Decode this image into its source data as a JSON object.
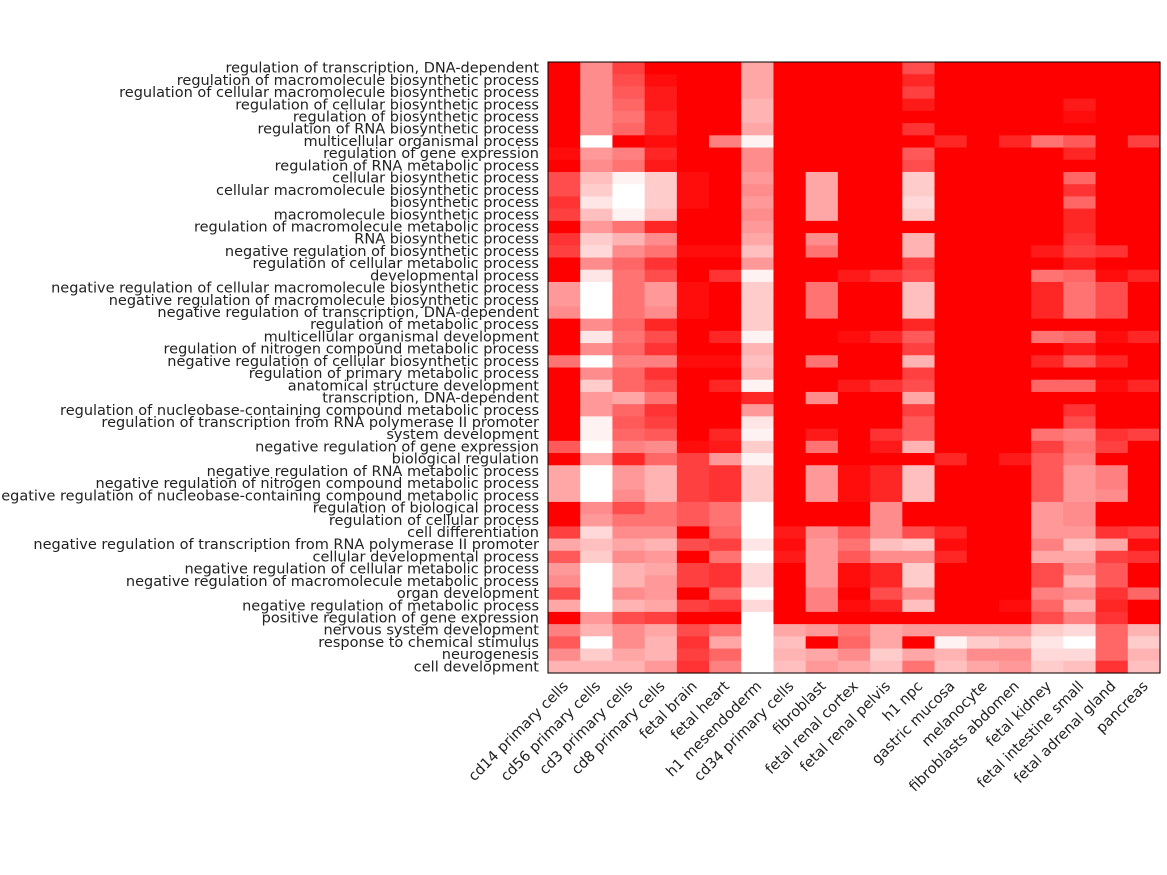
{
  "chart_data": {
    "type": "heatmap",
    "title": "",
    "xlabel": "",
    "ylabel": "",
    "color_scale": {
      "low": "#ffffff",
      "high": "#ff0000",
      "range": [
        0,
        1
      ]
    },
    "columns": [
      "cd14 primary cells",
      "cd56 primary cells",
      "cd3 primary cells",
      "cd8 primary cells",
      "fetal brain",
      "fetal heart",
      "h1 mesendoderm",
      "cd34 primary cells",
      "fibroblast",
      "fetal renal cortex",
      "fetal renal pelvis",
      "h1 npc",
      "gastric mucosa",
      "melanocyte",
      "fibroblasts abdomen",
      "fetal kidney",
      "fetal intestine small",
      "fetal adrenal gland",
      "pancreas"
    ],
    "rows": [
      "regulation of transcription, DNA-dependent",
      "regulation of macromolecule biosynthetic process",
      "regulation of cellular macromolecule biosynthetic process",
      "regulation of cellular biosynthetic process",
      "regulation of biosynthetic process",
      "regulation of RNA biosynthetic process",
      "multicellular organismal process",
      "regulation of gene expression",
      "regulation of RNA metabolic process",
      "cellular biosynthetic process",
      "cellular macromolecule biosynthetic process",
      "biosynthetic process",
      "macromolecule biosynthetic process",
      "regulation of macromolecule metabolic process",
      "RNA biosynthetic process",
      "negative regulation of biosynthetic process",
      "regulation of cellular metabolic process",
      "developmental process",
      "negative regulation of cellular macromolecule biosynthetic process",
      "negative regulation of macromolecule biosynthetic process",
      "negative regulation of transcription, DNA-dependent",
      "regulation of metabolic process",
      "multicellular organismal development",
      "regulation of nitrogen compound metabolic process",
      "negative regulation of cellular biosynthetic process",
      "regulation of primary metabolic process",
      "anatomical structure development",
      "transcription, DNA-dependent",
      "regulation of nucleobase-containing compound metabolic process",
      "regulation of transcription from RNA polymerase II promoter",
      "system development",
      "negative regulation of gene expression",
      "biological regulation",
      "negative regulation of RNA metabolic process",
      "negative regulation of nitrogen compound metabolic process",
      "negative regulation of nucleobase-containing compound metabolic process",
      "regulation of biological process",
      "regulation of cellular process",
      "cell differentiation",
      "negative regulation of transcription from RNA polymerase II promoter",
      "cellular developmental process",
      "negative regulation of cellular metabolic process",
      "negative regulation of macromolecule metabolic process",
      "organ development",
      "negative regulation of metabolic process",
      "positive regulation of gene expression",
      "nervous system development",
      "response to chemical stimulus",
      "neurogenesis",
      "cell development"
    ],
    "values": [
      [
        1.0,
        0.45,
        0.75,
        1.0,
        1.0,
        1.0,
        0.35,
        1.0,
        1.0,
        1.0,
        1.0,
        0.7,
        1.0,
        1.0,
        1.0,
        1.0,
        1.0,
        1.0,
        1.0
      ],
      [
        1.0,
        0.45,
        0.7,
        0.95,
        1.0,
        1.0,
        0.35,
        1.0,
        1.0,
        1.0,
        1.0,
        0.85,
        1.0,
        1.0,
        1.0,
        1.0,
        1.0,
        1.0,
        1.0
      ],
      [
        1.0,
        0.45,
        0.65,
        0.9,
        1.0,
        1.0,
        0.35,
        1.0,
        1.0,
        1.0,
        1.0,
        0.75,
        1.0,
        1.0,
        1.0,
        1.0,
        1.0,
        1.0,
        1.0
      ],
      [
        1.0,
        0.45,
        0.6,
        0.9,
        1.0,
        1.0,
        0.3,
        1.0,
        1.0,
        1.0,
        1.0,
        0.9,
        1.0,
        1.0,
        1.0,
        1.0,
        0.9,
        1.0,
        1.0
      ],
      [
        1.0,
        0.45,
        0.55,
        0.85,
        1.0,
        1.0,
        0.3,
        1.0,
        1.0,
        1.0,
        1.0,
        1.0,
        1.0,
        1.0,
        1.0,
        1.0,
        0.95,
        1.0,
        1.0
      ],
      [
        1.0,
        0.45,
        0.6,
        0.85,
        1.0,
        1.0,
        0.35,
        1.0,
        1.0,
        1.0,
        1.0,
        0.8,
        1.0,
        1.0,
        1.0,
        1.0,
        1.0,
        1.0,
        1.0
      ],
      [
        1.0,
        0.0,
        1.0,
        0.95,
        1.0,
        0.5,
        0.05,
        1.0,
        1.0,
        1.0,
        1.0,
        1.0,
        0.85,
        1.0,
        0.85,
        0.55,
        0.65,
        1.0,
        0.75
      ],
      [
        0.95,
        0.4,
        0.5,
        0.85,
        1.0,
        1.0,
        0.45,
        1.0,
        1.0,
        1.0,
        1.0,
        0.65,
        1.0,
        1.0,
        1.0,
        1.0,
        0.85,
        1.0,
        1.0
      ],
      [
        1.0,
        0.45,
        0.55,
        0.9,
        1.0,
        1.0,
        0.45,
        1.0,
        1.0,
        1.0,
        1.0,
        0.7,
        1.0,
        1.0,
        1.0,
        1.0,
        1.0,
        1.0,
        1.0
      ],
      [
        0.7,
        0.25,
        0.05,
        0.2,
        0.95,
        1.0,
        0.4,
        1.0,
        0.35,
        1.0,
        1.0,
        0.2,
        1.0,
        1.0,
        1.0,
        1.0,
        0.6,
        1.0,
        1.0
      ],
      [
        0.7,
        0.2,
        0.0,
        0.2,
        0.95,
        1.0,
        0.45,
        1.0,
        0.35,
        1.0,
        1.0,
        0.2,
        1.0,
        1.0,
        1.0,
        1.0,
        0.8,
        1.0,
        1.0
      ],
      [
        0.8,
        0.1,
        0.0,
        0.2,
        0.95,
        1.0,
        0.4,
        1.0,
        0.35,
        1.0,
        1.0,
        0.15,
        1.0,
        1.0,
        1.0,
        1.0,
        0.6,
        1.0,
        1.0
      ],
      [
        0.75,
        0.25,
        0.05,
        0.25,
        1.0,
        1.0,
        0.45,
        1.0,
        0.35,
        1.0,
        1.0,
        0.2,
        1.0,
        1.0,
        1.0,
        1.0,
        0.85,
        1.0,
        1.0
      ],
      [
        1.0,
        0.4,
        0.55,
        0.85,
        1.0,
        1.0,
        0.4,
        1.0,
        1.0,
        1.0,
        1.0,
        1.0,
        1.0,
        1.0,
        1.0,
        1.0,
        0.85,
        1.0,
        1.0
      ],
      [
        0.8,
        0.2,
        0.3,
        0.45,
        1.0,
        1.0,
        0.35,
        1.0,
        0.45,
        1.0,
        1.0,
        0.3,
        1.0,
        1.0,
        1.0,
        1.0,
        0.8,
        1.0,
        1.0
      ],
      [
        0.75,
        0.15,
        0.45,
        0.55,
        0.95,
        0.95,
        0.25,
        1.0,
        0.55,
        1.0,
        1.0,
        0.3,
        1.0,
        1.0,
        1.0,
        0.9,
        0.75,
        0.8,
        1.0
      ],
      [
        1.0,
        0.45,
        0.6,
        0.8,
        1.0,
        1.0,
        0.4,
        1.0,
        1.0,
        1.0,
        1.0,
        0.75,
        1.0,
        1.0,
        1.0,
        1.0,
        0.9,
        1.0,
        1.0
      ],
      [
        1.0,
        0.1,
        0.55,
        0.7,
        1.0,
        0.8,
        0.05,
        1.0,
        1.0,
        0.9,
        0.8,
        0.7,
        1.0,
        1.0,
        1.0,
        0.55,
        0.6,
        0.95,
        0.85
      ],
      [
        0.4,
        0.0,
        0.55,
        0.4,
        0.95,
        1.0,
        0.2,
        1.0,
        0.55,
        1.0,
        1.0,
        0.25,
        1.0,
        1.0,
        1.0,
        0.85,
        0.55,
        0.7,
        1.0
      ],
      [
        0.4,
        0.0,
        0.55,
        0.4,
        0.95,
        1.0,
        0.2,
        1.0,
        0.55,
        1.0,
        1.0,
        0.25,
        1.0,
        1.0,
        1.0,
        0.85,
        0.55,
        0.7,
        1.0
      ],
      [
        0.45,
        0.0,
        0.55,
        0.45,
        0.95,
        1.0,
        0.2,
        1.0,
        0.55,
        1.0,
        1.0,
        0.25,
        1.0,
        1.0,
        1.0,
        0.85,
        0.55,
        0.7,
        1.0
      ],
      [
        1.0,
        0.45,
        0.6,
        0.85,
        1.0,
        1.0,
        0.2,
        1.0,
        1.0,
        1.0,
        1.0,
        0.85,
        1.0,
        1.0,
        1.0,
        1.0,
        1.0,
        1.0,
        1.0
      ],
      [
        1.0,
        0.1,
        0.55,
        0.7,
        1.0,
        0.85,
        0.05,
        1.0,
        1.0,
        0.95,
        0.85,
        0.65,
        1.0,
        1.0,
        1.0,
        0.55,
        0.6,
        0.95,
        0.85
      ],
      [
        1.0,
        0.45,
        0.6,
        0.8,
        1.0,
        1.0,
        0.3,
        1.0,
        1.0,
        1.0,
        1.0,
        0.75,
        1.0,
        1.0,
        1.0,
        1.0,
        0.9,
        1.0,
        1.0
      ],
      [
        0.55,
        0.0,
        0.5,
        0.5,
        0.95,
        0.95,
        0.25,
        1.0,
        0.55,
        1.0,
        1.0,
        0.3,
        1.0,
        1.0,
        1.0,
        0.85,
        0.65,
        0.85,
        1.0
      ],
      [
        1.0,
        0.45,
        0.6,
        0.8,
        1.0,
        1.0,
        0.3,
        1.0,
        1.0,
        1.0,
        1.0,
        0.75,
        1.0,
        1.0,
        1.0,
        1.0,
        1.0,
        1.0,
        1.0
      ],
      [
        1.0,
        0.2,
        0.6,
        0.7,
        1.0,
        0.85,
        0.05,
        1.0,
        1.0,
        0.9,
        0.8,
        0.7,
        1.0,
        1.0,
        1.0,
        0.6,
        0.6,
        0.95,
        0.85
      ],
      [
        1.0,
        0.4,
        0.35,
        0.55,
        1.0,
        1.0,
        0.85,
        1.0,
        0.45,
        1.0,
        1.0,
        0.35,
        1.0,
        1.0,
        1.0,
        1.0,
        1.0,
        1.0,
        1.0
      ],
      [
        1.0,
        0.4,
        0.6,
        0.8,
        1.0,
        1.0,
        0.4,
        1.0,
        1.0,
        1.0,
        1.0,
        0.75,
        1.0,
        1.0,
        1.0,
        1.0,
        0.8,
        1.0,
        1.0
      ],
      [
        1.0,
        0.05,
        0.65,
        0.75,
        1.0,
        1.0,
        0.1,
        1.0,
        1.0,
        1.0,
        1.0,
        0.65,
        1.0,
        1.0,
        1.0,
        1.0,
        0.7,
        1.0,
        1.0
      ],
      [
        1.0,
        0.05,
        0.6,
        0.65,
        1.0,
        0.85,
        0.05,
        1.0,
        0.9,
        1.0,
        0.8,
        0.65,
        1.0,
        1.0,
        1.0,
        0.55,
        0.5,
        0.8,
        0.75
      ],
      [
        0.65,
        0.0,
        0.5,
        0.45,
        0.95,
        0.9,
        0.2,
        1.0,
        0.55,
        1.0,
        0.9,
        0.3,
        1.0,
        1.0,
        1.0,
        0.75,
        0.55,
        0.75,
        1.0
      ],
      [
        1.0,
        0.35,
        0.85,
        0.6,
        0.75,
        0.4,
        0.05,
        1.0,
        1.0,
        1.0,
        1.0,
        1.0,
        0.85,
        1.0,
        0.9,
        0.65,
        0.5,
        1.0,
        1.0
      ],
      [
        0.35,
        0.0,
        0.4,
        0.3,
        0.75,
        0.8,
        0.2,
        1.0,
        0.4,
        0.95,
        0.85,
        0.25,
        1.0,
        1.0,
        1.0,
        0.65,
        0.4,
        0.5,
        1.0
      ],
      [
        0.35,
        0.0,
        0.4,
        0.3,
        0.75,
        0.8,
        0.2,
        1.0,
        0.4,
        0.95,
        0.85,
        0.25,
        1.0,
        1.0,
        1.0,
        0.65,
        0.4,
        0.5,
        1.0
      ],
      [
        0.35,
        0.0,
        0.45,
        0.3,
        0.75,
        0.8,
        0.2,
        1.0,
        0.4,
        0.95,
        0.85,
        0.25,
        1.0,
        1.0,
        1.0,
        0.65,
        0.4,
        0.45,
        1.0
      ],
      [
        1.0,
        0.45,
        0.7,
        0.55,
        0.65,
        0.55,
        0.0,
        1.0,
        1.0,
        1.0,
        0.45,
        1.0,
        1.0,
        1.0,
        1.0,
        0.4,
        0.45,
        1.0,
        1.0
      ],
      [
        1.0,
        0.4,
        0.55,
        0.55,
        0.65,
        0.55,
        0.0,
        1.0,
        1.0,
        1.0,
        0.45,
        1.0,
        1.0,
        1.0,
        1.0,
        0.4,
        0.45,
        1.0,
        1.0
      ],
      [
        0.75,
        0.15,
        0.45,
        0.45,
        1.0,
        0.6,
        0.0,
        0.9,
        0.45,
        0.65,
        0.45,
        0.7,
        0.85,
        1.0,
        1.0,
        0.4,
        0.4,
        0.8,
        0.75
      ],
      [
        0.35,
        0.25,
        0.35,
        0.3,
        0.7,
        0.75,
        0.1,
        0.95,
        0.4,
        0.55,
        0.25,
        0.2,
        0.95,
        1.0,
        1.0,
        0.5,
        0.25,
        0.35,
        0.95
      ],
      [
        0.65,
        0.2,
        0.45,
        0.4,
        1.0,
        0.55,
        0.0,
        0.9,
        0.4,
        0.65,
        0.45,
        0.45,
        0.85,
        1.0,
        1.0,
        0.35,
        0.35,
        0.75,
        0.8
      ],
      [
        0.4,
        0.0,
        0.3,
        0.35,
        0.75,
        0.8,
        0.15,
        1.0,
        0.4,
        0.95,
        0.85,
        0.2,
        1.0,
        1.0,
        1.0,
        0.7,
        0.45,
        0.65,
        1.0
      ],
      [
        0.45,
        0.0,
        0.3,
        0.4,
        0.75,
        0.8,
        0.15,
        1.0,
        0.4,
        0.95,
        0.85,
        0.2,
        1.0,
        1.0,
        1.0,
        0.7,
        0.3,
        0.65,
        1.0
      ],
      [
        0.7,
        0.0,
        0.45,
        0.4,
        1.0,
        0.6,
        0.0,
        1.0,
        0.5,
        1.0,
        0.7,
        0.45,
        1.0,
        1.0,
        1.0,
        0.5,
        0.45,
        0.8,
        0.6
      ],
      [
        0.35,
        0.0,
        0.3,
        0.35,
        0.75,
        0.8,
        0.15,
        1.0,
        0.5,
        0.95,
        0.85,
        0.25,
        1.0,
        1.0,
        0.95,
        0.6,
        0.3,
        0.85,
        1.0
      ],
      [
        1.0,
        0.4,
        0.7,
        0.75,
        1.0,
        1.0,
        0.0,
        1.0,
        1.0,
        1.0,
        1.0,
        1.0,
        1.0,
        1.0,
        1.0,
        0.7,
        0.5,
        0.8,
        1.0
      ],
      [
        0.5,
        0.3,
        0.45,
        0.35,
        0.7,
        0.55,
        0.0,
        0.35,
        0.4,
        0.55,
        0.35,
        0.4,
        0.4,
        0.4,
        0.4,
        0.2,
        0.15,
        0.6,
        0.3
      ],
      [
        0.65,
        0.0,
        0.45,
        0.3,
        0.8,
        0.35,
        0.0,
        0.25,
        1.0,
        0.6,
        0.35,
        1.0,
        0.05,
        0.2,
        0.25,
        0.1,
        0.0,
        0.6,
        0.2
      ],
      [
        0.45,
        0.2,
        0.35,
        0.3,
        0.75,
        0.6,
        0.0,
        0.3,
        0.35,
        0.45,
        0.2,
        0.35,
        0.3,
        0.45,
        0.45,
        0.15,
        0.15,
        0.6,
        0.3
      ],
      [
        0.3,
        0.3,
        0.3,
        0.4,
        0.8,
        0.5,
        0.0,
        0.25,
        0.4,
        0.35,
        0.25,
        0.55,
        0.25,
        0.35,
        0.4,
        0.2,
        0.25,
        0.8,
        0.25
      ]
    ]
  }
}
